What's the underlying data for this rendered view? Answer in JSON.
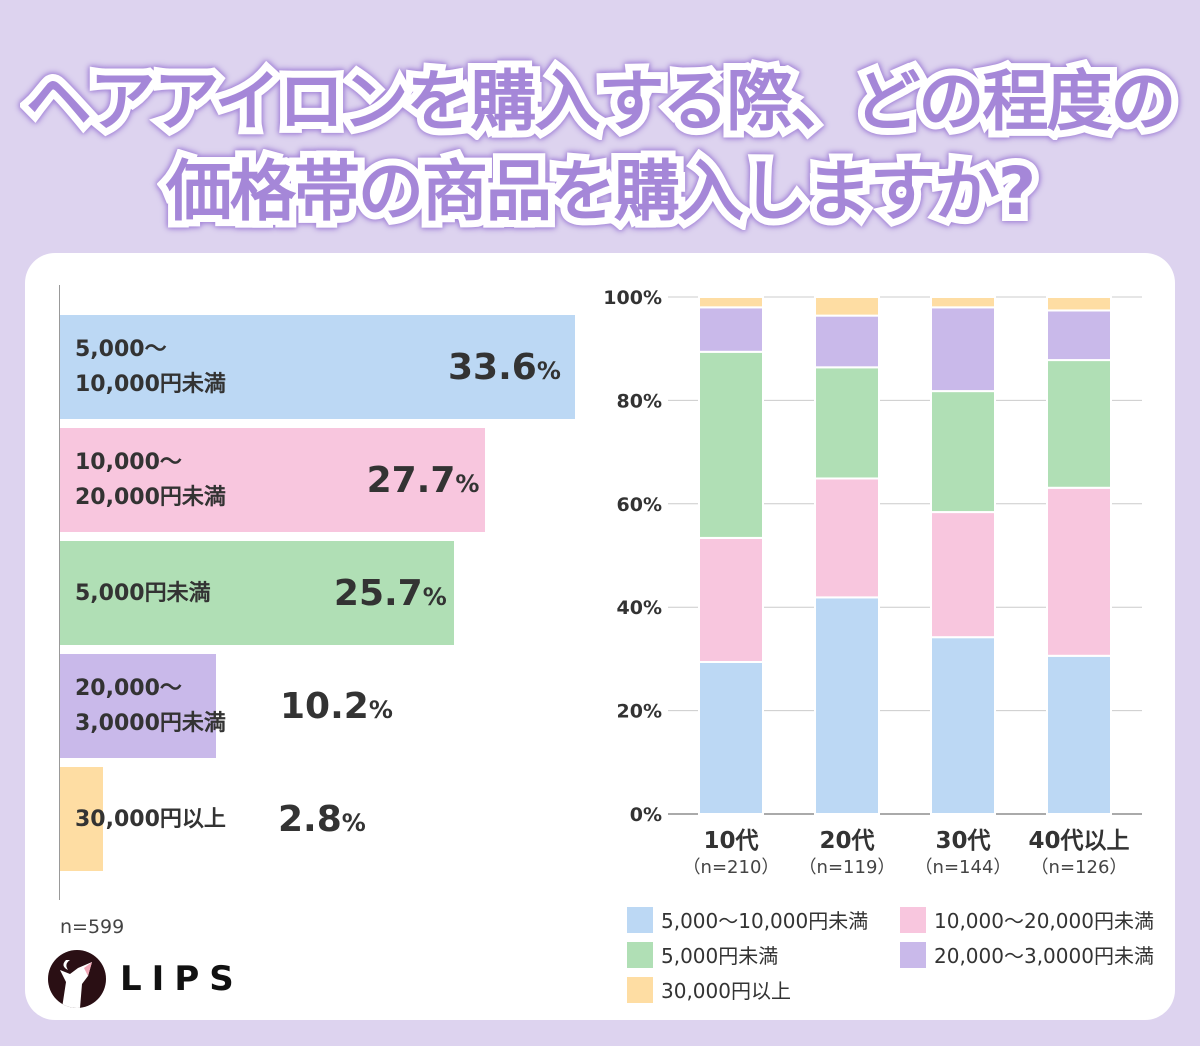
{
  "title": {
    "line1": "ヘアアイロンを購入する際、どの程度の",
    "line2": "価格帯の商品を購入しますか?"
  },
  "colors": {
    "blue": "#bcd8f4",
    "pink": "#f8c6de",
    "green": "#b0dfb5",
    "purple": "#c9b9ea",
    "orange": "#fedda3",
    "background": "#ddd3ef",
    "title": "#a587d8"
  },
  "overall": {
    "n_label": "n=599",
    "items": [
      {
        "label": "5,000〜\n10,000円未満",
        "value": 33.6,
        "value_text": "33.6",
        "color": "#bcd8f4"
      },
      {
        "label": "10,000〜\n20,000円未満",
        "value": 27.7,
        "value_text": "27.7",
        "color": "#f8c6de"
      },
      {
        "label": "5,000円未満",
        "value": 25.7,
        "value_text": "25.7",
        "color": "#b0dfb5"
      },
      {
        "label": "20,000〜\n3,0000円未満",
        "value": 10.2,
        "value_text": "10.2",
        "color": "#c9b9ea"
      },
      {
        "label": "30,000円以上",
        "value": 2.8,
        "value_text": "2.8",
        "color": "#fedda3"
      }
    ],
    "unit": "%"
  },
  "chart_data": {
    "type": "bar",
    "stacked": true,
    "categories": [
      "10代",
      "20代",
      "30代",
      "40代以上"
    ],
    "category_sublabels": [
      "（n=210）",
      "（n=119）",
      "（n=144）",
      "（n=126）"
    ],
    "ylim": [
      0,
      100
    ],
    "yticks": [
      "0%",
      "20%",
      "40%",
      "60%",
      "80%",
      "100%"
    ],
    "grid": true,
    "legend_position": "bottom",
    "series": [
      {
        "name": "5,000〜10,000円未満",
        "color": "#bcd8f4",
        "values": [
          29.4,
          41.9,
          34.2,
          30.6
        ]
      },
      {
        "name": "10,000〜20,000円未満",
        "color": "#f8c6de",
        "values": [
          24.0,
          23.0,
          24.2,
          32.5
        ]
      },
      {
        "name": "5,000円未満",
        "color": "#b0dfb5",
        "values": [
          36.0,
          21.5,
          23.4,
          24.7
        ]
      },
      {
        "name": "20,000〜3,0000円未満",
        "color": "#c9b9ea",
        "values": [
          8.6,
          10.0,
          16.2,
          9.6
        ]
      },
      {
        "name": "30,000円以上",
        "color": "#fedda3",
        "values": [
          2.0,
          3.6,
          2.0,
          2.6
        ]
      }
    ]
  },
  "logo": {
    "text": "LIPS"
  }
}
